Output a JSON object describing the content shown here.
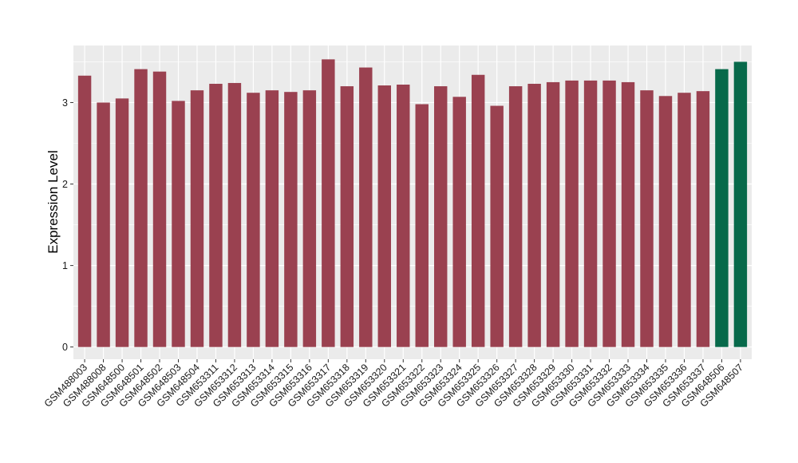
{
  "chart_data": {
    "type": "bar",
    "title": "",
    "xlabel": "",
    "ylabel": "Expression Level",
    "ylim": [
      -0.15,
      3.7
    ],
    "yticks": [
      0,
      1,
      2,
      3
    ],
    "grid": true,
    "legend": "none",
    "categories": [
      "GSM488003",
      "GSM488008",
      "GSM648500",
      "GSM648501",
      "GSM648502",
      "GSM648503",
      "GSM648504",
      "GSM653311",
      "GSM653312",
      "GSM653313",
      "GSM653314",
      "GSM653315",
      "GSM653316",
      "GSM653317",
      "GSM653318",
      "GSM653319",
      "GSM653320",
      "GSM653321",
      "GSM653322",
      "GSM653323",
      "GSM653324",
      "GSM653325",
      "GSM653326",
      "GSM653327",
      "GSM653328",
      "GSM653329",
      "GSM653330",
      "GSM653331",
      "GSM653332",
      "GSM653333",
      "GSM653334",
      "GSM653335",
      "GSM653336",
      "GSM653337",
      "GSM648506",
      "GSM648507"
    ],
    "values": [
      3.33,
      3.0,
      3.05,
      3.41,
      3.38,
      3.02,
      3.15,
      3.23,
      3.24,
      3.12,
      3.15,
      3.13,
      3.15,
      3.53,
      3.2,
      3.43,
      3.21,
      3.22,
      2.98,
      3.2,
      3.07,
      3.34,
      2.96,
      3.2,
      3.23,
      3.25,
      3.27,
      3.27,
      3.27,
      3.25,
      3.15,
      3.08,
      3.12,
      3.14,
      3.41,
      3.5
    ],
    "bar_colors": [
      "#9a4150",
      "#9a4150",
      "#9a4150",
      "#9a4150",
      "#9a4150",
      "#9a4150",
      "#9a4150",
      "#9a4150",
      "#9a4150",
      "#9a4150",
      "#9a4150",
      "#9a4150",
      "#9a4150",
      "#9a4150",
      "#9a4150",
      "#9a4150",
      "#9a4150",
      "#9a4150",
      "#9a4150",
      "#9a4150",
      "#9a4150",
      "#9a4150",
      "#9a4150",
      "#9a4150",
      "#9a4150",
      "#9a4150",
      "#9a4150",
      "#9a4150",
      "#9a4150",
      "#9a4150",
      "#9a4150",
      "#9a4150",
      "#9a4150",
      "#9a4150",
      "#07694a",
      "#07694a"
    ]
  },
  "colors": {
    "panel_background": "#ebebeb",
    "grid_major": "#ffffff",
    "primary_bar": "#9a4150",
    "highlight_bar": "#07694a"
  }
}
